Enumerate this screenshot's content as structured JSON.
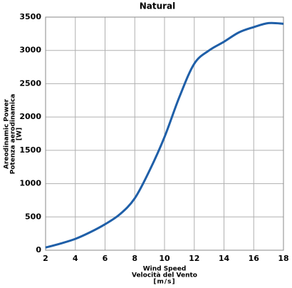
{
  "chart_data": {
    "type": "line",
    "title": "Natural",
    "x_label": [
      "Wind Speed",
      "Velocità del Vento",
      "[m/s]"
    ],
    "y_label": [
      "Areodinamic Power",
      "Potenza aerodinamica",
      "[W]"
    ],
    "x": [
      2,
      3,
      4,
      5,
      6,
      7,
      8,
      9,
      10,
      11,
      12,
      13,
      14,
      15,
      16,
      17,
      18
    ],
    "series": [
      {
        "name": "Natural",
        "color": "#1f5fa8",
        "values": [
          40,
          100,
          170,
          270,
          390,
          540,
          780,
          1200,
          1700,
          2300,
          2800,
          3000,
          3130,
          3270,
          3350,
          3410,
          3400
        ]
      }
    ],
    "xlim": [
      2,
      18
    ],
    "xticks": [
      2,
      4,
      6,
      8,
      10,
      12,
      14,
      16,
      18
    ],
    "ylim": [
      0,
      3500
    ],
    "yticks": [
      0,
      500,
      1000,
      1500,
      2000,
      2500,
      3000,
      3500
    ],
    "grid": true
  }
}
